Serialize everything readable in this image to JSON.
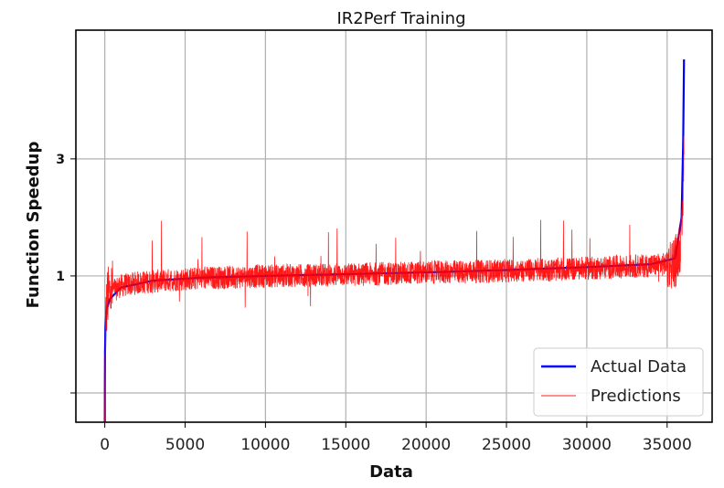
{
  "chart_data": {
    "type": "line",
    "title": "IR2Perf Training",
    "xlabel": "Data",
    "ylabel": "Function Speedup",
    "xlim": [
      -1800,
      37800
    ],
    "ylim": [
      -1.5,
      5.2
    ],
    "x_ticks": [
      0,
      5000,
      10000,
      15000,
      20000,
      25000,
      30000,
      35000
    ],
    "x_tick_labels": [
      "0",
      "5000",
      "10000",
      "15000",
      "20000",
      "25000",
      "30000",
      "35000"
    ],
    "y_ticks": [
      -1,
      1,
      3
    ],
    "y_tick_labels": [
      "",
      "1",
      "3"
    ],
    "grid": true,
    "legend_position": "bottom-right",
    "series": [
      {
        "name": "Actual Data",
        "color": "#0000ff",
        "x": [
          0,
          5,
          15,
          40,
          100,
          300,
          1000,
          3000,
          6000,
          10000,
          15000,
          20000,
          25000,
          30000,
          34000,
          35500,
          35900,
          36000,
          36050
        ],
        "y": [
          -1.8,
          -0.9,
          -0.3,
          0.1,
          0.4,
          0.6,
          0.8,
          0.92,
          0.97,
          1.0,
          1.03,
          1.06,
          1.1,
          1.15,
          1.2,
          1.3,
          2.0,
          3.3,
          4.7
        ]
      },
      {
        "name": "Predictions",
        "color": "#ff0000",
        "x": [
          0,
          40,
          150,
          400,
          1000,
          2000,
          4000,
          6000,
          8000,
          10000,
          12500,
          15000,
          17500,
          20000,
          22500,
          25000,
          27500,
          30000,
          32500,
          34000,
          35000,
          35500,
          35900,
          36000,
          36050
        ],
        "y": [
          -1.7,
          0.2,
          0.6,
          0.75,
          0.83,
          0.88,
          0.93,
          0.96,
          0.98,
          1.0,
          1.01,
          1.02,
          1.04,
          1.06,
          1.07,
          1.09,
          1.1,
          1.13,
          1.16,
          1.18,
          1.2,
          1.25,
          1.6,
          2.4,
          3.5
        ]
      }
    ]
  }
}
